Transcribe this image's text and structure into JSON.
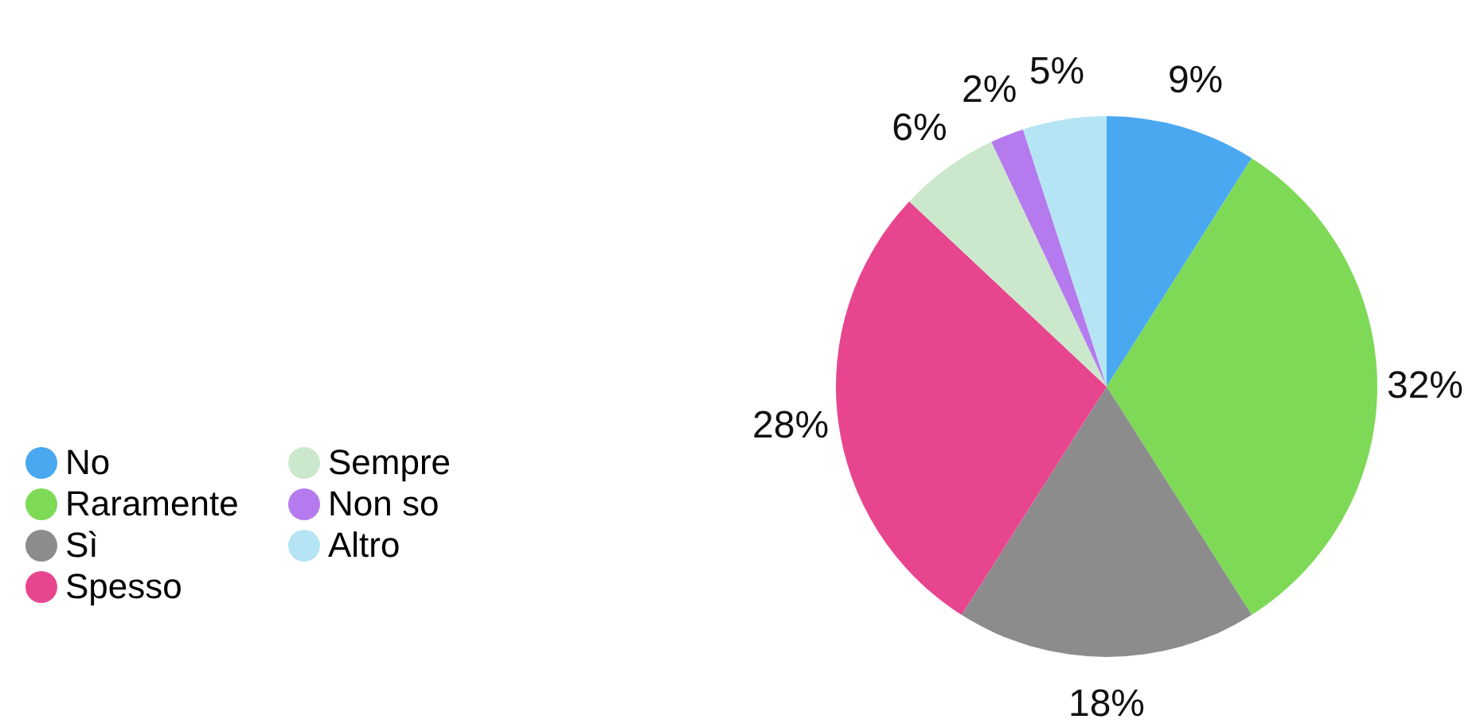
{
  "chart_data": {
    "type": "pie",
    "categories": [
      "No",
      "Raramente",
      "Sì",
      "Spesso",
      "Sempre",
      "Non so",
      "Altro"
    ],
    "values": [
      9,
      32,
      18,
      28,
      6,
      2,
      5
    ],
    "value_labels": [
      "9%",
      "32%",
      "18%",
      "28%",
      "6%",
      "2%",
      "5%"
    ],
    "colors": [
      "#4aa8f0",
      "#7ed957",
      "#8c8c8c",
      "#e8458f",
      "#cce8cc",
      "#b57bee",
      "#b5e5f5"
    ],
    "legend": "left"
  }
}
